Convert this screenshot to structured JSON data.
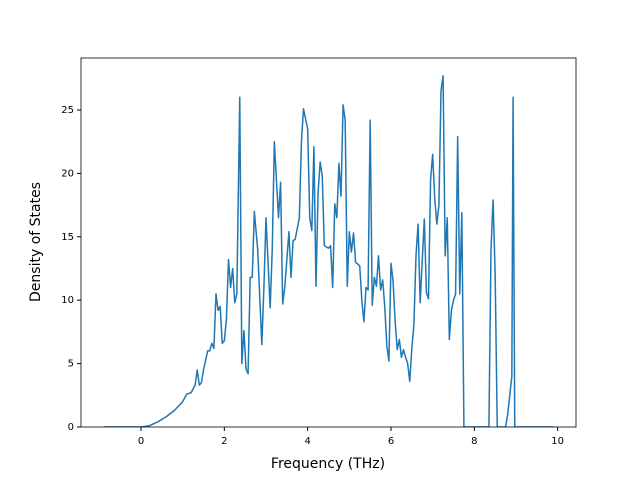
{
  "chart_data": {
    "type": "line",
    "x_label": "Frequency (THz)",
    "y_label": "Density of States",
    "series": [
      {
        "color": "#1f77b4",
        "x": [
          -0.9,
          0,
          0.2,
          0.4,
          0.6,
          0.8,
          1.0,
          1.1,
          1.2,
          1.3,
          1.35,
          1.4,
          1.45,
          1.5,
          1.6,
          1.65,
          1.7,
          1.75,
          1.8,
          1.85,
          1.9,
          1.95,
          2.0,
          2.05,
          2.1,
          2.15,
          2.2,
          2.25,
          2.3,
          2.37,
          2.42,
          2.47,
          2.52,
          2.57,
          2.62,
          2.67,
          2.72,
          2.8,
          2.9,
          2.95,
          3.0,
          3.1,
          3.15,
          3.2,
          3.3,
          3.35,
          3.4,
          3.45,
          3.55,
          3.6,
          3.65,
          3.7,
          3.8,
          3.85,
          3.9,
          4.0,
          4.05,
          4.1,
          4.15,
          4.2,
          4.25,
          4.3,
          4.35,
          4.4,
          4.5,
          4.55,
          4.6,
          4.65,
          4.7,
          4.75,
          4.8,
          4.85,
          4.9,
          4.95,
          5.0,
          5.05,
          5.1,
          5.15,
          5.25,
          5.3,
          5.35,
          5.4,
          5.45,
          5.5,
          5.55,
          5.6,
          5.65,
          5.7,
          5.75,
          5.8,
          5.85,
          5.9,
          5.95,
          6.0,
          6.05,
          6.1,
          6.15,
          6.2,
          6.25,
          6.3,
          6.35,
          6.4,
          6.45,
          6.5,
          6.55,
          6.6,
          6.65,
          6.7,
          6.8,
          6.85,
          6.9,
          6.95,
          7.0,
          7.05,
          7.1,
          7.15,
          7.2,
          7.25,
          7.3,
          7.35,
          7.4,
          7.45,
          7.5,
          7.55,
          7.6,
          7.65,
          7.7,
          7.75,
          8.35,
          8.4,
          8.45,
          8.5,
          8.55,
          8.75,
          8.8,
          8.85,
          8.9,
          8.93,
          8.97,
          9.9
        ],
        "values": [
          0,
          0,
          0.1,
          0.4,
          0.8,
          1.3,
          2.0,
          2.6,
          2.7,
          3.3,
          4.5,
          3.3,
          3.5,
          4.5,
          6.0,
          6.0,
          6.6,
          6.2,
          10.5,
          9.2,
          9.5,
          6.6,
          6.8,
          8.5,
          13.2,
          11,
          12.5,
          9.8,
          10.5,
          26,
          5,
          7.6,
          4.6,
          4.2,
          11.8,
          11.8,
          17,
          14,
          6.5,
          11,
          16.5,
          9.4,
          14,
          22.5,
          16.5,
          19.3,
          9.7,
          11,
          15.4,
          11.8,
          14.7,
          14.8,
          16.5,
          22.5,
          25.1,
          23.5,
          16.5,
          15.5,
          22.1,
          11.1,
          18.5,
          20.9,
          19.8,
          14.3,
          14.1,
          14.3,
          11,
          17.6,
          16.5,
          20.8,
          18.2,
          25.4,
          24.2,
          11.1,
          15.4,
          13.8,
          15.3,
          13,
          12.7,
          10,
          8.3,
          11,
          10.8,
          24.2,
          9.6,
          11.8,
          11.1,
          13.5,
          10.8,
          11.6,
          9.5,
          6.4,
          5.2,
          12.9,
          11.5,
          8.3,
          6.1,
          6.9,
          5.5,
          6.1,
          5.5,
          5,
          3.6,
          6.2,
          8.1,
          13.5,
          16,
          9.8,
          16.4,
          10.6,
          10.1,
          19.5,
          21.5,
          18,
          16,
          17.5,
          26.5,
          27.7,
          13.5,
          16.5,
          6.9,
          9.2,
          10,
          10.5,
          22.9,
          10.5,
          16.9,
          0,
          0,
          14,
          17.9,
          12,
          0,
          0,
          1,
          2.5,
          4,
          26,
          0,
          0
        ]
      }
    ],
    "xlim": [
      -1.44,
      10.44
    ],
    "xticks": [
      0,
      2,
      4,
      6,
      8,
      10
    ],
    "ylim": [
      0,
      29.1
    ],
    "yticks": [
      0,
      5,
      10,
      15,
      20,
      25
    ]
  }
}
